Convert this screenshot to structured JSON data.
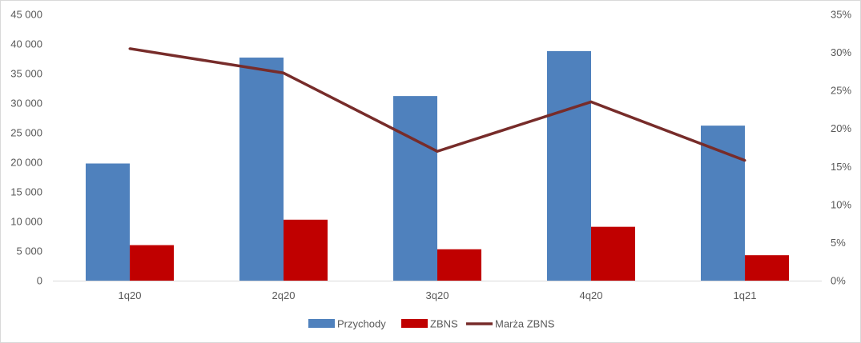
{
  "chart_data": {
    "type": "bar",
    "categories": [
      "1q20",
      "2q20",
      "3q20",
      "4q20",
      "1q21"
    ],
    "series": [
      {
        "name": "Przychody",
        "type": "bar",
        "axis": "left",
        "color": "#4F81BD",
        "values": [
          19800,
          37700,
          31200,
          38800,
          26200
        ]
      },
      {
        "name": "ZBNS",
        "type": "bar",
        "axis": "left",
        "color": "#C00000",
        "values": [
          6000,
          10300,
          5300,
          9100,
          4300
        ]
      },
      {
        "name": "Marża ZBNS",
        "type": "line",
        "axis": "right",
        "color": "#772C2A",
        "values": [
          0.305,
          0.273,
          0.17,
          0.235,
          0.158
        ]
      }
    ],
    "left_axis": {
      "ylim": [
        0,
        45000
      ],
      "ticks": [
        0,
        5000,
        10000,
        15000,
        20000,
        25000,
        30000,
        35000,
        40000,
        45000
      ],
      "tick_labels": [
        "0",
        "5 000",
        "10 000",
        "15 000",
        "20 000",
        "25 000",
        "30 000",
        "35 000",
        "40 000",
        "45 000"
      ]
    },
    "right_axis": {
      "ylim": [
        0,
        0.35
      ],
      "ticks": [
        0,
        0.05,
        0.1,
        0.15,
        0.2,
        0.25,
        0.3,
        0.35
      ],
      "tick_labels": [
        "0%",
        "5%",
        "10%",
        "15%",
        "20%",
        "25%",
        "30%",
        "35%"
      ]
    },
    "grid": false,
    "legend_position": "bottom",
    "title": "",
    "xlabel": "",
    "ylabel": ""
  }
}
